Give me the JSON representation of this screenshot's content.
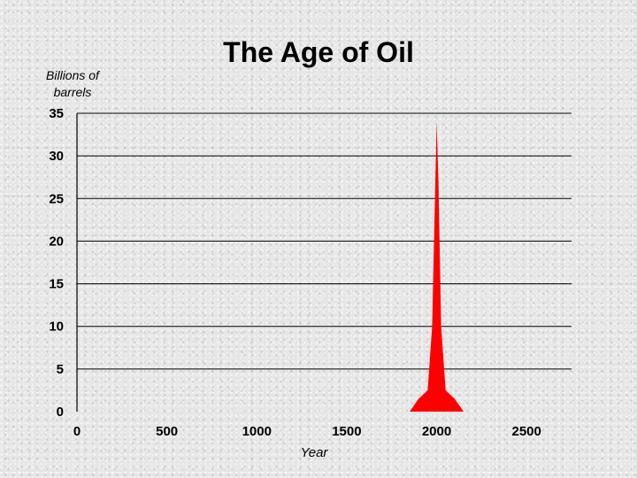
{
  "chart_data": {
    "type": "area",
    "title": "The Age of Oil",
    "ylabel_lines": [
      "Billions of",
      "barrels"
    ],
    "xlabel": "Year",
    "xlim": [
      0,
      2750
    ],
    "ylim": [
      0,
      35
    ],
    "xticks": [
      0,
      500,
      1000,
      1500,
      2000,
      2500
    ],
    "yticks": [
      0,
      5,
      10,
      15,
      20,
      25,
      30,
      35
    ],
    "grid": true,
    "fill_color": "#ff0000",
    "series": [
      {
        "x": [
          1850,
          1900,
          1950,
          1975,
          2000,
          2010,
          2025,
          2050,
          2100,
          2150
        ],
        "values": [
          0,
          1.5,
          2.5,
          10,
          34,
          27,
          10,
          2.5,
          1.5,
          0
        ]
      }
    ]
  }
}
